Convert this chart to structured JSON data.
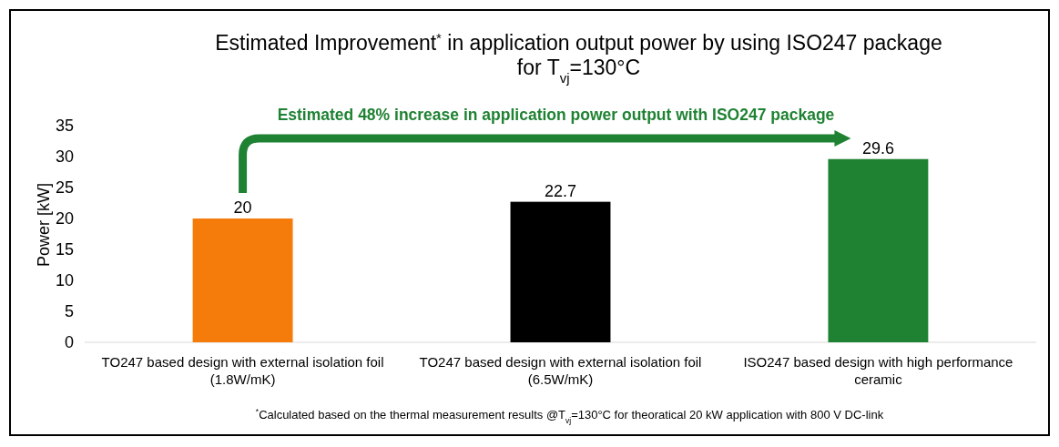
{
  "chart_data": {
    "type": "bar",
    "title": "Estimated Improvement$^{*}$ in application output power by using ISO247 package\nfor T$_{vj}$=130°C",
    "ylabel": "Power [kW]",
    "categories": [
      "TO247 based design with external isolation foil\n(1.8W/mK)",
      "TO247 based design with external isolation foil\n(6.5W/mK)",
      "ISO247 based design with high performance\nceramic"
    ],
    "values": [
      20,
      22.7,
      29.6
    ],
    "colors": [
      "#f57c0a",
      "#000000",
      "#1f8232"
    ],
    "ylim": [
      0,
      35
    ],
    "yticks": [
      0,
      5,
      10,
      15,
      20,
      25,
      30,
      35
    ],
    "data_labels": true,
    "grid": false,
    "annotations": [
      "Estimated 48% increase in application power output with ISO247 package",
      "$^{*}$Calculated based on the thermal measurement results @T$_{vj}$=130°C for theoratical 20 kW application with 800 V DC-link"
    ]
  }
}
